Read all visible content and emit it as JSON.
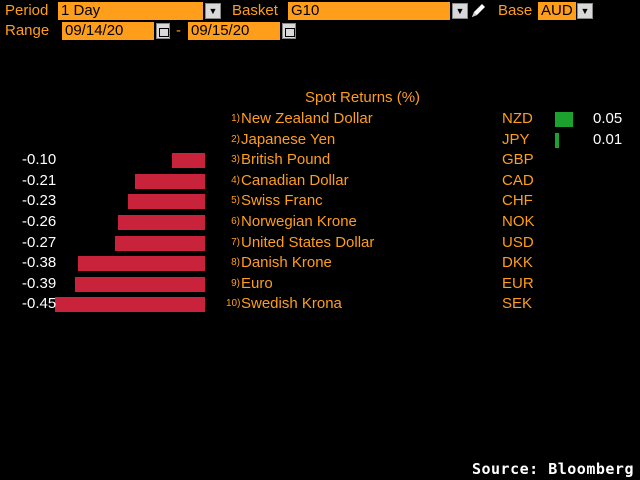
{
  "toolbar": {
    "period_label": "Period",
    "period_value": "1 Day",
    "basket_label": "Basket",
    "basket_value": "G10",
    "base_label": "Base",
    "base_value": "AUD",
    "range_label": "Range",
    "range_start": "09/14/20",
    "range_separator": "-",
    "range_end": "09/15/20"
  },
  "chart_title": "Spot Returns (%)",
  "source": "Source: Bloomberg",
  "colors": {
    "positive": "#1ba12e",
    "negative": "#c8233a",
    "accent": "#ff9e1b"
  },
  "chart_data": {
    "type": "bar",
    "title": "Spot Returns (%)",
    "categories": [
      "New Zealand Dollar",
      "Japanese Yen",
      "British Pound",
      "Canadian Dollar",
      "Swiss Franc",
      "Norwegian Krone",
      "United States Dollar",
      "Danish Krone",
      "Euro",
      "Swedish Krona"
    ],
    "rows": [
      {
        "rank": "1)",
        "name": "New Zealand Dollar",
        "code": "NZD",
        "value": 0.05,
        "label": "0.05"
      },
      {
        "rank": "2)",
        "name": "Japanese Yen",
        "code": "JPY",
        "value": 0.01,
        "label": "0.01"
      },
      {
        "rank": "3)",
        "name": "British Pound",
        "code": "GBP",
        "value": -0.1,
        "label": "-0.10"
      },
      {
        "rank": "4)",
        "name": "Canadian Dollar",
        "code": "CAD",
        "value": -0.21,
        "label": "-0.21"
      },
      {
        "rank": "5)",
        "name": "Swiss Franc",
        "code": "CHF",
        "value": -0.23,
        "label": "-0.23"
      },
      {
        "rank": "6)",
        "name": "Norwegian Krone",
        "code": "NOK",
        "value": -0.26,
        "label": "-0.26"
      },
      {
        "rank": "7)",
        "name": "United States Dollar",
        "code": "USD",
        "value": -0.27,
        "label": "-0.27"
      },
      {
        "rank": "8)",
        "name": "Danish Krone",
        "code": "DKK",
        "value": -0.38,
        "label": "-0.38"
      },
      {
        "rank": "9)",
        "name": "Euro",
        "code": "EUR",
        "value": -0.39,
        "label": "-0.39"
      },
      {
        "rank": "10)",
        "name": "Swedish Krona",
        "code": "SEK",
        "value": -0.45,
        "label": "-0.45"
      }
    ]
  }
}
